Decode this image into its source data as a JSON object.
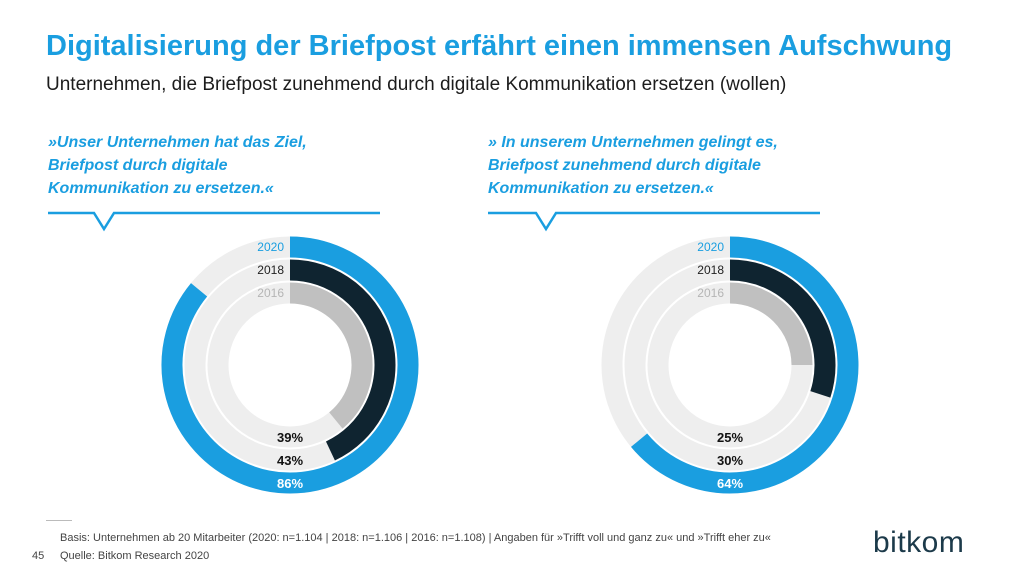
{
  "title": "Digitalisierung der Briefpost erfährt einen immensen Aufschwung",
  "subtitle": "Unternehmen, die Briefpost zunehmend durch digitale Kommunikation ersetzen (wollen)",
  "colors": {
    "accent": "#1a9ee0",
    "series_2020": "#1a9ee0",
    "series_2018": "#0f2430",
    "series_2016": "#c0c0c0",
    "track": "#eeeeee",
    "label_2016": "#b5b5b5"
  },
  "chart_data": [
    {
      "type": "pie",
      "subtype": "radial-ring",
      "quote_lines": [
        "»Unser Unternehmen hat das Ziel,",
        "Briefpost durch digitale",
        "Kommunikation zu ersetzen.«"
      ],
      "series": [
        {
          "name": "2020",
          "value": 86,
          "label": "86%"
        },
        {
          "name": "2018",
          "value": 43,
          "label": "43%"
        },
        {
          "name": "2016",
          "value": 39,
          "label": "39%"
        }
      ],
      "unit": "%",
      "max": 100
    },
    {
      "type": "pie",
      "subtype": "radial-ring",
      "quote_lines": [
        "» In unserem Unternehmen gelingt es,",
        "Briefpost zunehmend durch digitale",
        "Kommunikation zu ersetzen.«"
      ],
      "series": [
        {
          "name": "2020",
          "value": 64,
          "label": "64%"
        },
        {
          "name": "2018",
          "value": 30,
          "label": "30%"
        },
        {
          "name": "2016",
          "value": 25,
          "label": "25%"
        }
      ],
      "unit": "%",
      "max": 100
    }
  ],
  "footer": {
    "basis": "Basis: Unternehmen ab 20 Mitarbeiter (2020: n=1.104 | 2018: n=1.106 | 2016: n=1.108) | Angaben für »Trifft voll und ganz zu« und »Trifft eher zu«",
    "source": "Quelle: Bitkom Research 2020",
    "page_number": "45",
    "logo": "bitkom"
  }
}
